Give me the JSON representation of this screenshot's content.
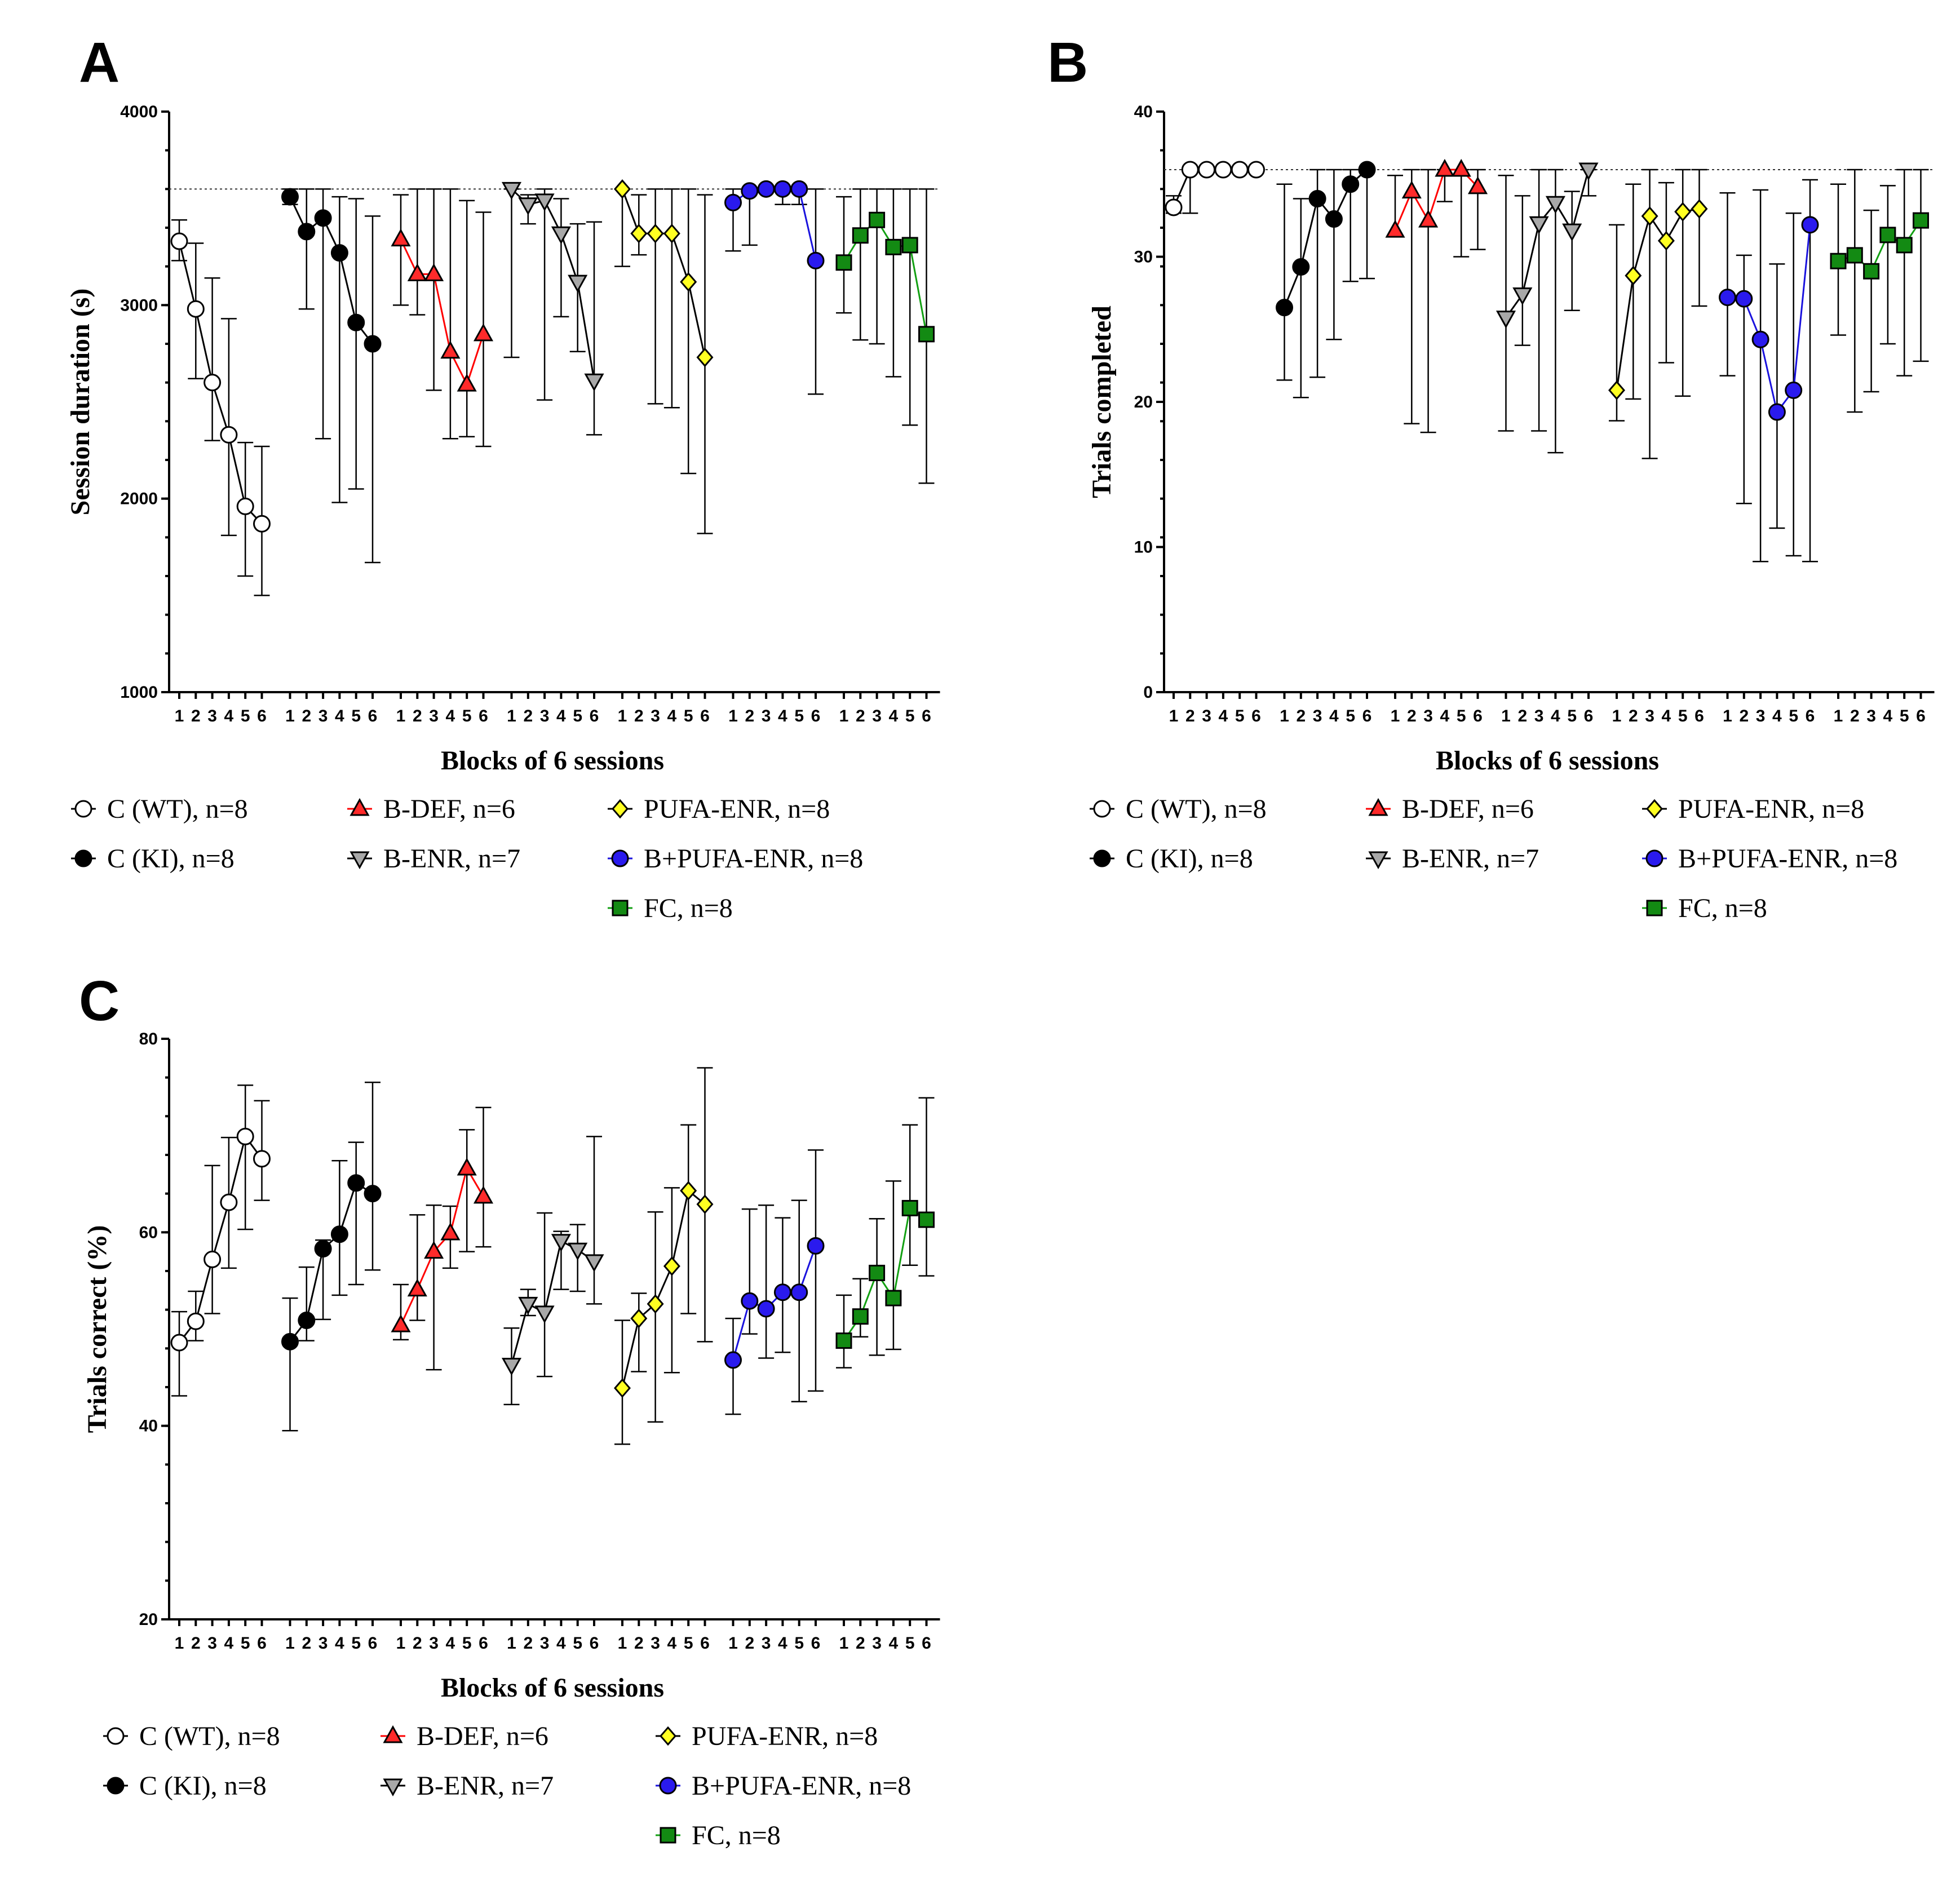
{
  "groups": [
    {
      "key": "wt",
      "label": "C (WT), n=8",
      "color": "#ffffff",
      "line": "#000000",
      "marker": "circle-open"
    },
    {
      "key": "ki",
      "label": "C (KI), n=8",
      "color": "#000000",
      "line": "#000000",
      "marker": "circle"
    },
    {
      "key": "bdef",
      "label": "B-DEF, n=6",
      "color": "#ff2a2a",
      "line": "#ff0000",
      "marker": "triangle-up"
    },
    {
      "key": "benr",
      "label": "B-ENR, n=7",
      "color": "#a8a8a8",
      "line": "#000000",
      "marker": "triangle-down"
    },
    {
      "key": "pufa",
      "label": "PUFA-ENR, n=8",
      "color": "#ffff22",
      "line": "#000000",
      "marker": "diamond"
    },
    {
      "key": "bpufa",
      "label": "B+PUFA-ENR, n=8",
      "color": "#2a1aee",
      "line": "#1a12dd",
      "marker": "circle"
    },
    {
      "key": "fc",
      "label": "FC, n=8",
      "color": "#138a13",
      "line": "#13a013",
      "marker": "square"
    }
  ],
  "chart_data": [
    {
      "panel": "A",
      "type": "line",
      "title": "",
      "xlabel": "Blocks of 6 sessions",
      "ylabel": "Session duration (s)",
      "ylim": [
        1000,
        4000
      ],
      "yticks": [
        "1000",
        "2000",
        "3000",
        "4000"
      ],
      "xtick_labels": [
        "1",
        "2",
        "3",
        "4",
        "5",
        "6"
      ],
      "reference_line": 3600,
      "series": [
        {
          "group": "wt",
          "values": [
            3330,
            2980,
            2600,
            2330,
            1960,
            1870
          ],
          "upper": [
            3440,
            3320,
            3140,
            2930,
            2290,
            2270
          ],
          "lower": [
            3230,
            2620,
            2300,
            1810,
            1600,
            1500
          ]
        },
        {
          "group": "ki",
          "values": [
            3560,
            3380,
            3450,
            3270,
            2910,
            2800
          ],
          "upper": [
            3600,
            3600,
            3600,
            3560,
            3550,
            3460
          ],
          "lower": [
            3520,
            2980,
            2310,
            1980,
            2050,
            1670
          ]
        },
        {
          "group": "bdef",
          "values": [
            3340,
            3160,
            3160,
            2760,
            2590,
            2850
          ],
          "upper": [
            3570,
            3600,
            3600,
            3600,
            3540,
            3480
          ],
          "lower": [
            3000,
            2950,
            2560,
            2310,
            2320,
            2270
          ]
        },
        {
          "group": "benr",
          "values": [
            3600,
            3520,
            3540,
            3370,
            3120,
            2610
          ],
          "upper": [
            3600,
            3570,
            3600,
            3550,
            3420,
            3430
          ],
          "lower": [
            2730,
            3420,
            2510,
            2940,
            2760,
            2330
          ]
        },
        {
          "group": "pufa",
          "values": [
            3600,
            3370,
            3370,
            3370,
            3120,
            2730
          ],
          "upper": [
            3600,
            3570,
            3600,
            3600,
            3600,
            3570
          ],
          "lower": [
            3200,
            3260,
            2490,
            2470,
            2130,
            1820
          ]
        },
        {
          "group": "bpufa",
          "values": [
            3530,
            3590,
            3600,
            3600,
            3600,
            3230
          ],
          "upper": [
            3600,
            3600,
            3600,
            3600,
            3600,
            3600
          ],
          "lower": [
            3280,
            3310,
            3600,
            3520,
            3520,
            2540
          ]
        },
        {
          "group": "fc",
          "values": [
            3220,
            3360,
            3440,
            3300,
            3310,
            2850
          ],
          "upper": [
            3560,
            3600,
            3600,
            3600,
            3600,
            3600
          ],
          "lower": [
            2960,
            2820,
            2800,
            2630,
            2380,
            2080
          ]
        }
      ]
    },
    {
      "panel": "B",
      "type": "line",
      "title": "",
      "xlabel": "Blocks of 6 sessions",
      "ylabel": "Trials completed",
      "ylim": [
        0,
        40
      ],
      "yticks": [
        "0",
        "10",
        "20",
        "30",
        "40"
      ],
      "xtick_labels": [
        "1",
        "2",
        "3",
        "4",
        "5",
        "6"
      ],
      "reference_line": 36,
      "series": [
        {
          "group": "wt",
          "values": [
            33.4,
            36,
            36,
            36,
            36,
            36
          ],
          "upper": [
            34.2,
            36,
            36,
            36,
            36,
            36
          ],
          "lower": [
            33.0,
            33.0,
            36,
            36,
            36,
            36
          ]
        },
        {
          "group": "ki",
          "values": [
            26.5,
            29.3,
            34.0,
            32.6,
            35.0,
            36.0
          ],
          "upper": [
            35.0,
            34.0,
            36.0,
            36.0,
            36.0,
            36.0
          ],
          "lower": [
            21.5,
            20.3,
            21.7,
            24.3,
            28.3,
            28.5
          ]
        },
        {
          "group": "bdef",
          "values": [
            31.8,
            34.5,
            32.5,
            36.0,
            36.0,
            34.8
          ],
          "upper": [
            35.6,
            36.0,
            36.0,
            36.0,
            36.0,
            36.0
          ],
          "lower": [
            31.5,
            18.5,
            17.9,
            33.8,
            30.0,
            30.5
          ]
        },
        {
          "group": "benr",
          "values": [
            25.8,
            27.4,
            32.3,
            33.7,
            31.8,
            36.0
          ],
          "upper": [
            35.6,
            34.2,
            36.0,
            36.0,
            34.5,
            36.0
          ],
          "lower": [
            18.0,
            23.9,
            18.0,
            16.5,
            26.3,
            34.2
          ]
        },
        {
          "group": "pufa",
          "values": [
            20.8,
            28.7,
            32.8,
            31.1,
            33.1,
            33.3
          ],
          "upper": [
            32.2,
            35.0,
            36.0,
            35.1,
            36.0,
            36.0
          ],
          "lower": [
            18.7,
            20.2,
            16.1,
            22.7,
            20.4,
            26.6
          ]
        },
        {
          "group": "bpufa",
          "values": [
            27.2,
            27.1,
            24.3,
            19.3,
            20.8,
            32.2
          ],
          "upper": [
            34.4,
            30.1,
            34.6,
            29.5,
            33.0,
            35.3
          ],
          "lower": [
            21.8,
            13.0,
            9.0,
            11.3,
            9.4,
            9.0
          ]
        },
        {
          "group": "fc",
          "values": [
            29.7,
            30.1,
            29.0,
            31.5,
            30.8,
            32.5
          ],
          "upper": [
            35.0,
            36.0,
            33.2,
            34.9,
            36.0,
            36.0
          ],
          "lower": [
            24.6,
            19.3,
            20.7,
            24.0,
            21.8,
            22.8
          ]
        }
      ]
    },
    {
      "panel": "C",
      "type": "line",
      "title": "",
      "xlabel": "Blocks of 6 sessions",
      "ylabel": "Trials correct (%)",
      "ylim": [
        20,
        80
      ],
      "yticks": [
        "20",
        "40",
        "60",
        "80"
      ],
      "xtick_labels": [
        "1",
        "2",
        "3",
        "4",
        "5",
        "6"
      ],
      "reference_line": null,
      "series": [
        {
          "group": "wt",
          "values": [
            48.6,
            50.8,
            57.2,
            63.1,
            69.9,
            67.6
          ],
          "upper": [
            51.8,
            53.9,
            66.9,
            69.8,
            75.2,
            73.6
          ],
          "lower": [
            43.1,
            48.8,
            51.6,
            56.3,
            60.3,
            63.3
          ]
        },
        {
          "group": "ki",
          "values": [
            48.7,
            50.9,
            58.3,
            59.8,
            65.1,
            64.0
          ],
          "upper": [
            53.2,
            56.4,
            59.2,
            67.4,
            69.3,
            75.5
          ],
          "lower": [
            39.5,
            48.8,
            51.0,
            53.5,
            54.6,
            56.1
          ]
        },
        {
          "group": "bdef",
          "values": [
            50.4,
            54.1,
            58.0,
            59.9,
            66.6,
            63.7
          ],
          "upper": [
            54.6,
            61.8,
            62.8,
            62.7,
            70.6,
            72.9
          ],
          "lower": [
            48.9,
            50.9,
            45.8,
            56.3,
            58.0,
            58.5
          ]
        },
        {
          "group": "benr",
          "values": [
            46.3,
            52.6,
            51.7,
            59.1,
            58.2,
            57.0
          ],
          "upper": [
            50.1,
            54.1,
            62.0,
            60.1,
            60.8,
            69.9
          ],
          "lower": [
            42.2,
            51.4,
            45.1,
            54.1,
            53.9,
            52.6
          ]
        },
        {
          "group": "pufa",
          "values": [
            43.9,
            51.1,
            52.6,
            56.5,
            64.3,
            62.9
          ],
          "upper": [
            50.9,
            53.7,
            62.1,
            64.6,
            71.1,
            77.0
          ],
          "lower": [
            38.1,
            45.6,
            40.4,
            45.5,
            51.6,
            48.7
          ]
        },
        {
          "group": "bpufa",
          "values": [
            46.8,
            52.9,
            52.1,
            53.8,
            53.8,
            58.6
          ],
          "upper": [
            51.1,
            62.4,
            62.8,
            61.5,
            63.3,
            68.5
          ],
          "lower": [
            41.2,
            49.5,
            47.0,
            47.6,
            42.5,
            43.6
          ]
        },
        {
          "group": "fc",
          "values": [
            48.8,
            51.3,
            55.8,
            53.2,
            62.5,
            61.3
          ],
          "upper": [
            53.5,
            55.2,
            61.4,
            65.3,
            71.1,
            73.9
          ],
          "lower": [
            46.0,
            49.2,
            47.3,
            47.9,
            56.6,
            55.5
          ]
        }
      ]
    }
  ]
}
